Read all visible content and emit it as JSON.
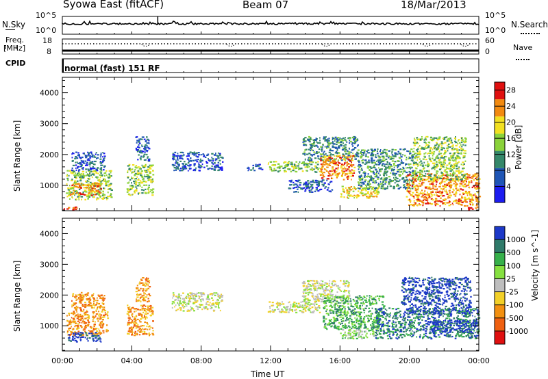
{
  "header": {
    "station": "Syowa East (fitACF)",
    "beam": "Beam 07",
    "date": "18/Mar/2013"
  },
  "noise_panel": {
    "left_label": "N.Sky",
    "right_label": "N.Search",
    "tick_high": "10^5",
    "tick_low": "10^0"
  },
  "freq_panel": {
    "left_label_1": "Freq.",
    "left_label_2": "[MHz]",
    "right_label": "Nave",
    "left_ticks": [
      "18",
      "8"
    ],
    "right_ticks": [
      "60",
      "0"
    ]
  },
  "cpid_panel": {
    "label": "CPID",
    "mode_text": "normal (fast) 151 RF"
  },
  "x_axis": {
    "label": "Time UT",
    "tick_labels": [
      "00:00",
      "04:00",
      "08:00",
      "12:00",
      "16:00",
      "20:00",
      "00:00"
    ]
  },
  "chart_data": [
    {
      "type": "heatmap",
      "title": "",
      "xlabel": "Time UT",
      "ylabel": "Slant Range [km]",
      "x_ticks": [
        "00:00",
        "04:00",
        "08:00",
        "12:00",
        "16:00",
        "20:00",
        "00:00"
      ],
      "xlim_hours": [
        0,
        24
      ],
      "y_ticks": [
        "1000",
        "2000",
        "3000",
        "4000"
      ],
      "ylim": [
        180,
        4500
      ],
      "colorbar": {
        "label": "Power [dB]",
        "ticks": [
          "4",
          "8",
          "12",
          "16",
          "20",
          "24",
          "28"
        ],
        "range": [
          0,
          30
        ],
        "colors": [
          "#1c1cf0",
          "#1f55b5",
          "#35886a",
          "#8ad23a",
          "#f2e020",
          "#f28a10",
          "#e01010"
        ]
      },
      "echo_regions": [
        {
          "t_start": 0.0,
          "t_end": 0.9,
          "r_low": 230,
          "r_high": 340,
          "level": 6
        },
        {
          "t_start": 0.2,
          "t_end": 2.8,
          "r_low": 550,
          "r_high": 1500,
          "level": 3
        },
        {
          "t_start": 0.4,
          "t_end": 2.2,
          "r_low": 700,
          "r_high": 1100,
          "level": 5
        },
        {
          "t_start": 0.5,
          "t_end": 2.4,
          "r_low": 1500,
          "r_high": 2100,
          "level": 1
        },
        {
          "t_start": 3.7,
          "t_end": 5.2,
          "r_low": 700,
          "r_high": 1700,
          "level": 3
        },
        {
          "t_start": 4.2,
          "t_end": 5.0,
          "r_low": 1800,
          "r_high": 2600,
          "level": 1
        },
        {
          "t_start": 6.3,
          "t_end": 9.2,
          "r_low": 1500,
          "r_high": 2100,
          "level": 1
        },
        {
          "t_start": 10.6,
          "t_end": 11.5,
          "r_low": 1500,
          "r_high": 1700,
          "level": 1
        },
        {
          "t_start": 11.8,
          "t_end": 14.8,
          "r_low": 1450,
          "r_high": 1800,
          "level": 3
        },
        {
          "t_start": 13.0,
          "t_end": 15.5,
          "r_low": 800,
          "r_high": 1200,
          "level": 1
        },
        {
          "t_start": 13.8,
          "t_end": 17.0,
          "r_low": 1800,
          "r_high": 2600,
          "level": 2
        },
        {
          "t_start": 14.8,
          "t_end": 16.8,
          "r_low": 1200,
          "r_high": 2000,
          "level": 5
        },
        {
          "t_start": 16.0,
          "t_end": 18.2,
          "r_low": 600,
          "r_high": 1000,
          "level": 4
        },
        {
          "t_start": 17.0,
          "t_end": 20.2,
          "r_low": 900,
          "r_high": 2200,
          "level": 2
        },
        {
          "t_start": 19.8,
          "t_end": 24.0,
          "r_low": 350,
          "r_high": 1400,
          "level": 5
        },
        {
          "t_start": 20.2,
          "t_end": 23.2,
          "r_low": 1200,
          "r_high": 2600,
          "level": 3
        },
        {
          "t_start": 23.3,
          "t_end": 24.0,
          "r_low": 230,
          "r_high": 340,
          "level": 6
        }
      ]
    },
    {
      "type": "heatmap",
      "title": "",
      "xlabel": "Time UT",
      "ylabel": "Slant Range [km]",
      "x_ticks": [
        "00:00",
        "04:00",
        "08:00",
        "12:00",
        "16:00",
        "20:00",
        "00:00"
      ],
      "xlim_hours": [
        0,
        24
      ],
      "y_ticks": [
        "1000",
        "2000",
        "3000",
        "4000"
      ],
      "ylim": [
        180,
        4500
      ],
      "colorbar": {
        "label": "Velocity [m s^-1]",
        "ticks": [
          "1000",
          "500",
          "100",
          "25",
          "-25",
          "-100",
          "-500",
          "-1000"
        ],
        "colors": [
          "#1c38c8",
          "#2f7a6a",
          "#36b04a",
          "#86e040",
          "#bebebe",
          "#f2d028",
          "#f29010",
          "#ef6010",
          "#e01010"
        ]
      },
      "echo_regions": [
        {
          "t_start": 0.2,
          "t_end": 2.6,
          "r_low": 700,
          "r_high": 1500,
          "level": 6
        },
        {
          "t_start": 0.3,
          "t_end": 2.2,
          "r_low": 500,
          "r_high": 800,
          "level": 0
        },
        {
          "t_start": 0.5,
          "t_end": 2.4,
          "r_low": 1500,
          "r_high": 2100,
          "level": 6
        },
        {
          "t_start": 3.7,
          "t_end": 5.2,
          "r_low": 700,
          "r_high": 1700,
          "level": 6
        },
        {
          "t_start": 4.2,
          "t_end": 5.0,
          "r_low": 1800,
          "r_high": 2600,
          "level": 6
        },
        {
          "t_start": 6.3,
          "t_end": 9.2,
          "r_low": 1500,
          "r_high": 2100,
          "level": 4
        },
        {
          "t_start": 11.8,
          "t_end": 14.8,
          "r_low": 1450,
          "r_high": 1800,
          "level": 4
        },
        {
          "t_start": 13.8,
          "t_end": 16.5,
          "r_low": 1800,
          "r_high": 2500,
          "level": 4
        },
        {
          "t_start": 15.0,
          "t_end": 18.5,
          "r_low": 900,
          "r_high": 2000,
          "level": 2
        },
        {
          "t_start": 16.0,
          "t_end": 18.2,
          "r_low": 600,
          "r_high": 900,
          "level": 3
        },
        {
          "t_start": 18.0,
          "t_end": 24.0,
          "r_low": 600,
          "r_high": 1600,
          "level": 1
        },
        {
          "t_start": 19.5,
          "t_end": 23.5,
          "r_low": 1400,
          "r_high": 2600,
          "level": 0
        },
        {
          "t_start": 21.0,
          "t_end": 24.0,
          "r_low": 800,
          "r_high": 1200,
          "level": 0
        }
      ]
    }
  ]
}
